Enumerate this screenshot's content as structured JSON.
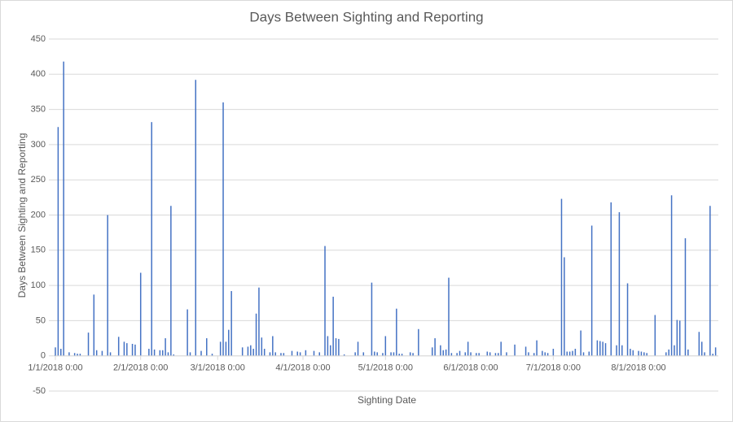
{
  "chart_data": {
    "type": "bar",
    "title": "Days Between Sighting and Reporting",
    "x_label": "Sighting Date",
    "y_label": "Days Between Sighting and Reporting",
    "color": "#4472c4",
    "grid": true,
    "xlim": [
      "1/1/2018 0:00",
      "8/30/2018 0:00"
    ],
    "xticks": [
      "1/1/2018 0:00",
      "2/1/2018 0:00",
      "3/1/2018 0:00",
      "4/1/2018 0:00",
      "5/1/2018 0:00",
      "6/1/2018 0:00",
      "7/1/2018 0:00",
      "8/1/2018 0:00"
    ],
    "ylim": [
      -50,
      450
    ],
    "yticks": [
      -50,
      0,
      50,
      100,
      150,
      200,
      250,
      300,
      350,
      400,
      450
    ],
    "x": [
      "1/1/2018 0:00",
      "1/2/2018 0:00",
      "1/3/2018 0:00",
      "1/4/2018 0:00",
      "1/6/2018 0:00",
      "1/8/2018 0:00",
      "1/9/2018 0:00",
      "1/10/2018 0:00",
      "1/13/2018 0:00",
      "1/15/2018 0:00",
      "1/16/2018 0:00",
      "1/18/2018 0:00",
      "1/20/2018 0:00",
      "1/21/2018 0:00",
      "1/24/2018 0:00",
      "1/26/2018 0:00",
      "1/27/2018 0:00",
      "1/29/2018 0:00",
      "1/30/2018 0:00",
      "2/1/2018 0:00",
      "2/4/2018 0:00",
      "2/5/2018 0:00",
      "2/6/2018 0:00",
      "2/8/2018 0:00",
      "2/9/2018 0:00",
      "2/10/2018 0:00",
      "2/11/2018 0:00",
      "2/12/2018 0:00",
      "2/13/2018 0:00",
      "2/18/2018 0:00",
      "2/19/2018 0:00",
      "2/21/2018 0:00",
      "2/23/2018 0:00",
      "2/25/2018 0:00",
      "2/27/2018 0:00",
      "3/2/2018 0:00",
      "3/3/2018 0:00",
      "3/4/2018 0:00",
      "3/5/2018 0:00",
      "3/6/2018 0:00",
      "3/10/2018 0:00",
      "3/12/2018 0:00",
      "3/13/2018 0:00",
      "3/14/2018 0:00",
      "3/15/2018 0:00",
      "3/16/2018 0:00",
      "3/17/2018 0:00",
      "3/18/2018 0:00",
      "3/20/2018 0:00",
      "3/21/2018 0:00",
      "3/22/2018 0:00",
      "3/24/2018 0:00",
      "3/25/2018 0:00",
      "3/28/2018 0:00",
      "3/30/2018 0:00",
      "3/31/2018 0:00",
      "4/2/2018 0:00",
      "4/5/2018 0:00",
      "4/7/2018 0:00",
      "4/9/2018 0:00",
      "4/10/2018 0:00",
      "4/11/2018 0:00",
      "4/12/2018 0:00",
      "4/13/2018 0:00",
      "4/14/2018 0:00",
      "4/16/2018 0:00",
      "4/20/2018 0:00",
      "4/21/2018 0:00",
      "4/23/2018 0:00",
      "4/26/2018 0:00",
      "4/27/2018 0:00",
      "4/28/2018 0:00",
      "4/30/2018 0:00",
      "5/1/2018 0:00",
      "5/3/2018 0:00",
      "5/4/2018 0:00",
      "5/5/2018 0:00",
      "5/6/2018 0:00",
      "5/7/2018 0:00",
      "5/10/2018 0:00",
      "5/11/2018 0:00",
      "5/13/2018 0:00",
      "5/18/2018 0:00",
      "5/19/2018 0:00",
      "5/21/2018 0:00",
      "5/22/2018 0:00",
      "5/23/2018 0:00",
      "5/24/2018 0:00",
      "5/25/2018 0:00",
      "5/27/2018 0:00",
      "5/28/2018 0:00",
      "5/30/2018 0:00",
      "5/31/2018 0:00",
      "6/1/2018 0:00",
      "6/3/2018 0:00",
      "6/4/2018 0:00",
      "6/7/2018 0:00",
      "6/8/2018 0:00",
      "6/10/2018 0:00",
      "6/11/2018 0:00",
      "6/12/2018 0:00",
      "6/14/2018 0:00",
      "6/17/2018 0:00",
      "6/21/2018 0:00",
      "6/22/2018 0:00",
      "6/24/2018 0:00",
      "6/25/2018 0:00",
      "6/27/2018 0:00",
      "6/28/2018 0:00",
      "6/29/2018 0:00",
      "7/1/2018 0:00",
      "7/4/2018 0:00",
      "7/5/2018 0:00",
      "7/6/2018 0:00",
      "7/7/2018 0:00",
      "7/8/2018 0:00",
      "7/9/2018 0:00",
      "7/11/2018 0:00",
      "7/12/2018 0:00",
      "7/14/2018 0:00",
      "7/15/2018 0:00",
      "7/17/2018 0:00",
      "7/18/2018 0:00",
      "7/19/2018 0:00",
      "7/20/2018 0:00",
      "7/22/2018 0:00",
      "7/24/2018 0:00",
      "7/25/2018 0:00",
      "7/26/2018 0:00",
      "7/28/2018 0:00",
      "7/29/2018 0:00",
      "7/30/2018 0:00",
      "8/1/2018 0:00",
      "8/2/2018 0:00",
      "8/3/2018 0:00",
      "8/4/2018 0:00",
      "8/7/2018 0:00",
      "8/11/2018 0:00",
      "8/12/2018 0:00",
      "8/13/2018 0:00",
      "8/14/2018 0:00",
      "8/15/2018 0:00",
      "8/16/2018 0:00",
      "8/18/2018 0:00",
      "8/19/2018 0:00",
      "8/23/2018 0:00",
      "8/24/2018 0:00",
      "8/25/2018 0:00",
      "8/27/2018 0:00",
      "8/28/2018 0:00",
      "8/29/2018 0:00"
    ],
    "values": [
      12,
      325,
      10,
      418,
      5,
      4,
      3,
      3,
      33,
      87,
      8,
      7,
      200,
      5,
      27,
      20,
      18,
      17,
      16,
      118,
      10,
      332,
      9,
      8,
      8,
      25,
      5,
      213,
      2,
      66,
      5,
      392,
      7,
      25,
      3,
      20,
      360,
      20,
      37,
      92,
      12,
      13,
      15,
      10,
      60,
      97,
      26,
      10,
      5,
      28,
      5,
      4,
      4,
      7,
      6,
      5,
      8,
      7,
      5,
      156,
      28,
      15,
      84,
      25,
      24,
      2,
      5,
      20,
      5,
      104,
      6,
      5,
      4,
      28,
      5,
      5,
      67,
      3,
      3,
      5,
      4,
      38,
      12,
      25,
      15,
      8,
      9,
      111,
      4,
      4,
      7,
      5,
      20,
      5,
      4,
      4,
      6,
      5,
      4,
      4,
      20,
      5,
      16,
      13,
      5,
      4,
      22,
      7,
      5,
      4,
      10,
      223,
      140,
      6,
      6,
      7,
      10,
      36,
      5,
      6,
      185,
      22,
      21,
      20,
      18,
      218,
      15,
      204,
      15,
      103,
      10,
      8,
      7,
      6,
      5,
      4,
      58,
      5,
      9,
      228,
      15,
      51,
      50,
      167,
      9,
      34,
      20,
      5,
      213,
      3,
      12
    ]
  }
}
